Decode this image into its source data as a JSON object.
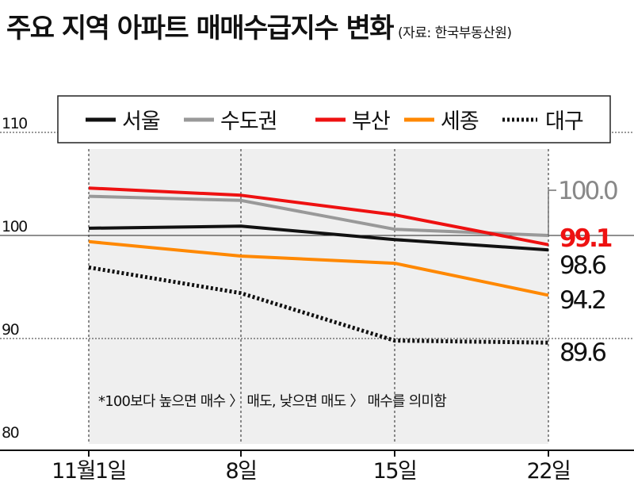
{
  "title": "주요 지역 아파트 매매수급지수 변화",
  "source": "(자료: 한국부동산원)",
  "note": "*100보다 높으면 매수 〉 매도, 낮으면 매도 〉 매수를 의미함",
  "chart_data": {
    "type": "line",
    "title": "주요 지역 아파트 매매수급지수 변화",
    "categories": [
      "11월1일",
      "8일",
      "15일",
      "22일"
    ],
    "ylim": [
      80,
      112
    ],
    "yticks": [
      80,
      90,
      100,
      110
    ],
    "legend_position": "top",
    "series": [
      {
        "name": "서울",
        "values": [
          100.7,
          100.9,
          99.6,
          98.6
        ],
        "color": "#111111",
        "dash": "solid",
        "end_label": "98.6"
      },
      {
        "name": "수도권",
        "values": [
          103.8,
          103.4,
          100.6,
          100.0
        ],
        "color": "#999999",
        "dash": "solid",
        "end_label": "100.0"
      },
      {
        "name": "부산",
        "values": [
          104.6,
          103.9,
          102.0,
          99.1
        ],
        "color": "#ee1111",
        "dash": "solid",
        "end_label": "99.1"
      },
      {
        "name": "세종",
        "values": [
          99.4,
          98.0,
          97.3,
          94.2
        ],
        "color": "#ff8800",
        "dash": "solid",
        "end_label": "94.2"
      },
      {
        "name": "대구",
        "values": [
          96.9,
          94.4,
          89.8,
          89.6
        ],
        "color": "#111111",
        "dash": "dotted",
        "end_label": "89.6"
      }
    ]
  }
}
